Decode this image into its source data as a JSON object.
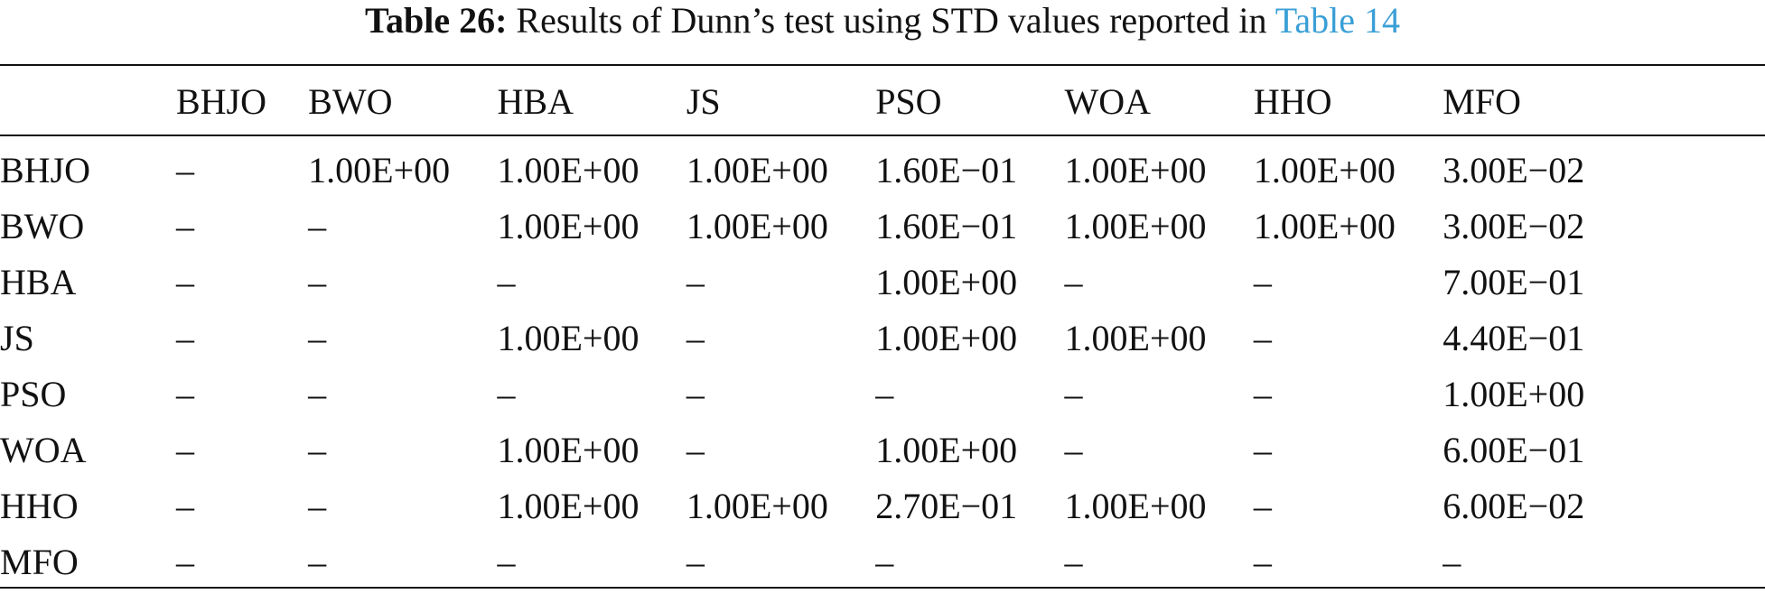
{
  "caption": {
    "label": "Table 26:",
    "text": "Results of Dunn’s test using STD values reported in",
    "link": "Table 14"
  },
  "colors": {
    "text": "#111111",
    "link": "#3a9fd6"
  },
  "table": {
    "corner": "",
    "columns": [
      "BHJO",
      "BWO",
      "HBA",
      "JS",
      "PSO",
      "WOA",
      "HHO",
      "MFO"
    ],
    "rows": [
      {
        "label": "BHJO",
        "cells": [
          "–",
          "1.00E+00",
          "1.00E+00",
          "1.00E+00",
          "1.60E−01",
          "1.00E+00",
          "1.00E+00",
          "3.00E−02"
        ],
        "bold": [
          false,
          false,
          false,
          false,
          false,
          false,
          false,
          true
        ]
      },
      {
        "label": "BWO",
        "cells": [
          "–",
          "–",
          "1.00E+00",
          "1.00E+00",
          "1.60E−01",
          "1.00E+00",
          "1.00E+00",
          "3.00E−02"
        ],
        "bold": [
          false,
          false,
          false,
          false,
          false,
          false,
          false,
          true
        ]
      },
      {
        "label": "HBA",
        "cells": [
          "–",
          "–",
          "–",
          "–",
          "1.00E+00",
          "–",
          "–",
          "7.00E−01"
        ],
        "bold": [
          false,
          false,
          false,
          false,
          false,
          false,
          false,
          false
        ]
      },
      {
        "label": "JS",
        "cells": [
          "–",
          "–",
          "1.00E+00",
          "–",
          "1.00E+00",
          "1.00E+00",
          "–",
          "4.40E−01"
        ],
        "bold": [
          false,
          false,
          false,
          false,
          false,
          false,
          false,
          false
        ]
      },
      {
        "label": "PSO",
        "cells": [
          "–",
          "–",
          "–",
          "–",
          "–",
          "–",
          "–",
          "1.00E+00"
        ],
        "bold": [
          false,
          false,
          false,
          false,
          false,
          false,
          false,
          false
        ]
      },
      {
        "label": "WOA",
        "cells": [
          "–",
          "–",
          "1.00E+00",
          "–",
          "1.00E+00",
          "–",
          "–",
          "6.00E−01"
        ],
        "bold": [
          false,
          false,
          false,
          false,
          false,
          false,
          false,
          false
        ]
      },
      {
        "label": "HHO",
        "cells": [
          "–",
          "–",
          "1.00E+00",
          "1.00E+00",
          "2.70E−01",
          "1.00E+00",
          "–",
          "6.00E−02"
        ],
        "bold": [
          false,
          false,
          false,
          false,
          false,
          false,
          false,
          false
        ]
      },
      {
        "label": "MFO",
        "cells": [
          "–",
          "–",
          "–",
          "–",
          "–",
          "–",
          "–",
          "–"
        ],
        "bold": [
          false,
          false,
          false,
          false,
          false,
          false,
          false,
          false
        ]
      }
    ]
  }
}
